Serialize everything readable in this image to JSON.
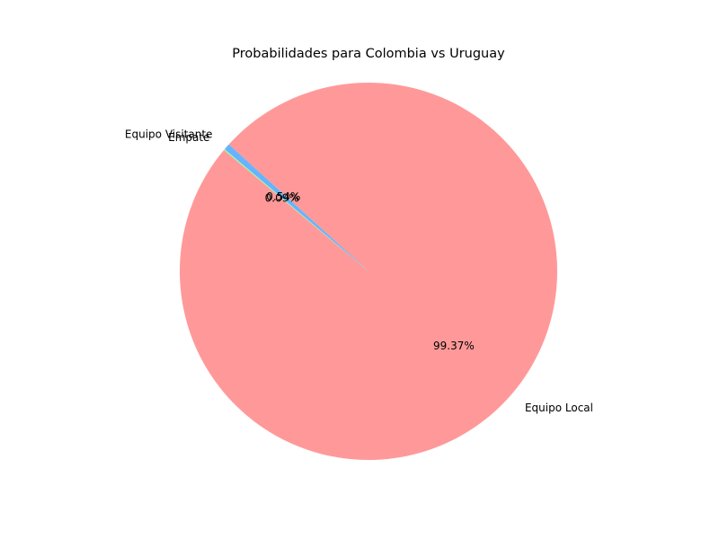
{
  "chart_data": {
    "type": "pie",
    "title": "Probabilidades para Colombia vs Uruguay",
    "start_angle_deg": 140,
    "counterclockwise": true,
    "slices": [
      {
        "label": "Equipo Local",
        "value": 99.37,
        "pct_label": "99.37%",
        "color": "#ff9999"
      },
      {
        "label": "Equipo Visitante",
        "value": 0.54,
        "pct_label": "0.54%",
        "color": "#66b3ff"
      },
      {
        "label": "Empate",
        "value": 0.09,
        "pct_label": "0.09%",
        "color": "#99ff99"
      }
    ]
  }
}
